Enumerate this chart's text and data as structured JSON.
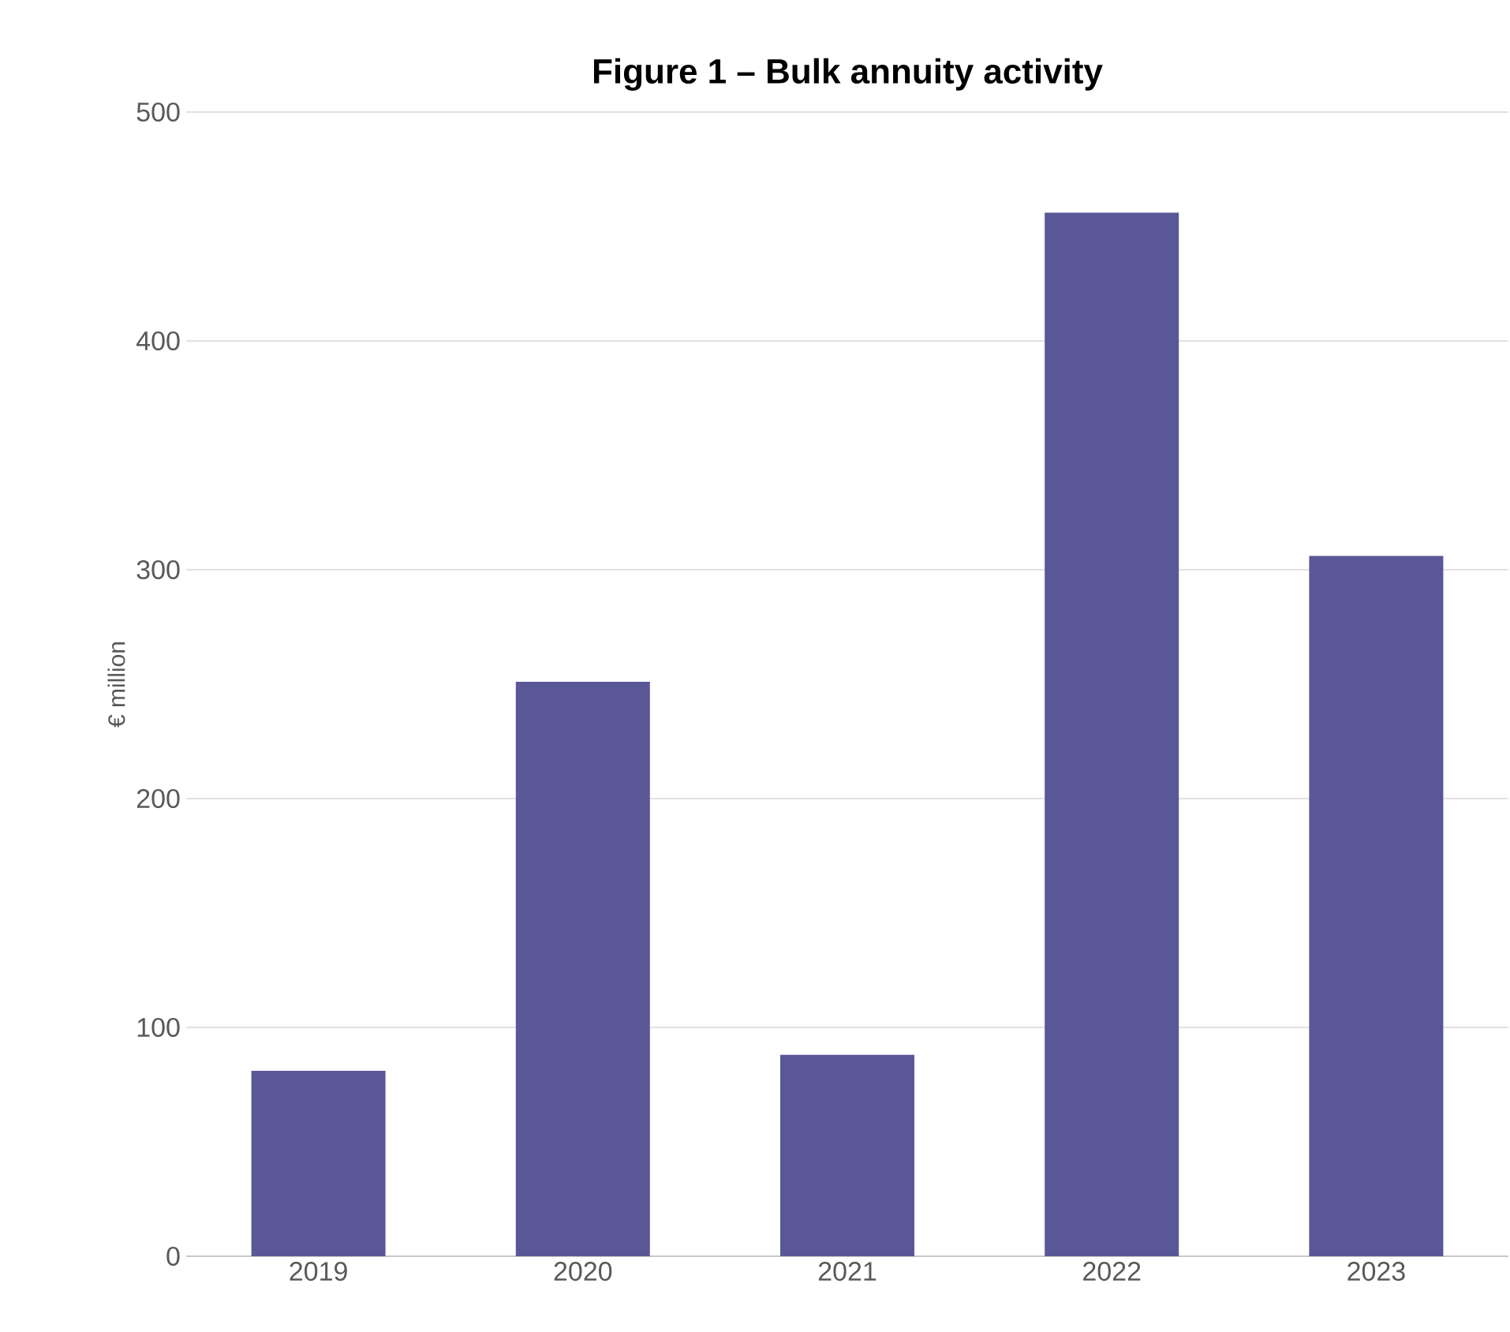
{
  "chart_data": {
    "type": "bar",
    "title": "Figure 1 – Bulk annuity activity",
    "ylabel": "€ million",
    "categories": [
      "2019",
      "2020",
      "2021",
      "2022",
      "2023"
    ],
    "values": [
      81,
      251,
      88,
      456,
      306
    ],
    "color": "#5a5797",
    "ylim": [
      0,
      500
    ],
    "yticks": [
      0,
      100,
      200,
      300,
      400,
      500
    ],
    "grid": "y"
  }
}
